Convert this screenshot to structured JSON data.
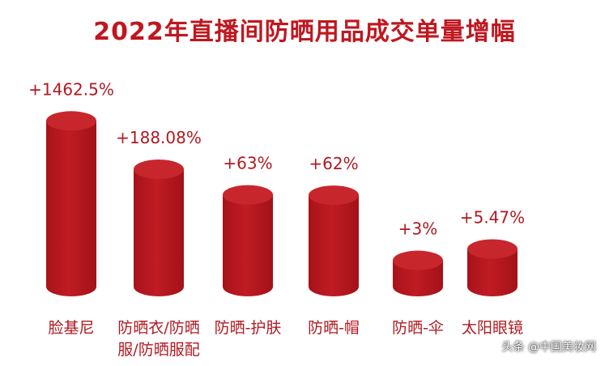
{
  "chart_data": {
    "type": "bar",
    "title": "2022年直播间防晒用品成交单量增幅",
    "categories": [
      "脸基尼",
      "防晒衣/防晒服/防晒服配",
      "防晒-护肤",
      "防晒-帽",
      "防晒-伞",
      "太阳眼镜"
    ],
    "category_lines": [
      [
        "脸基尼"
      ],
      [
        "防晒衣/防晒",
        "服/防晒服配"
      ],
      [
        "防晒-护肤"
      ],
      [
        "防晒-帽"
      ],
      [
        "防晒-伞"
      ],
      [
        "太阳眼镜"
      ]
    ],
    "values": [
      1462.5,
      188.08,
      63,
      62,
      3,
      5.47
    ],
    "value_labels": [
      "+1462.5%",
      "+188.08%",
      "+63%",
      "+62%",
      "+3%",
      "+5.47%"
    ],
    "unit": "%",
    "colors": {
      "title": "#c0171f",
      "bar": "#b5161e",
      "bar_top": "#c8262d",
      "label": "#b01a22"
    }
  },
  "watermark": "头条 @中国美妆网"
}
